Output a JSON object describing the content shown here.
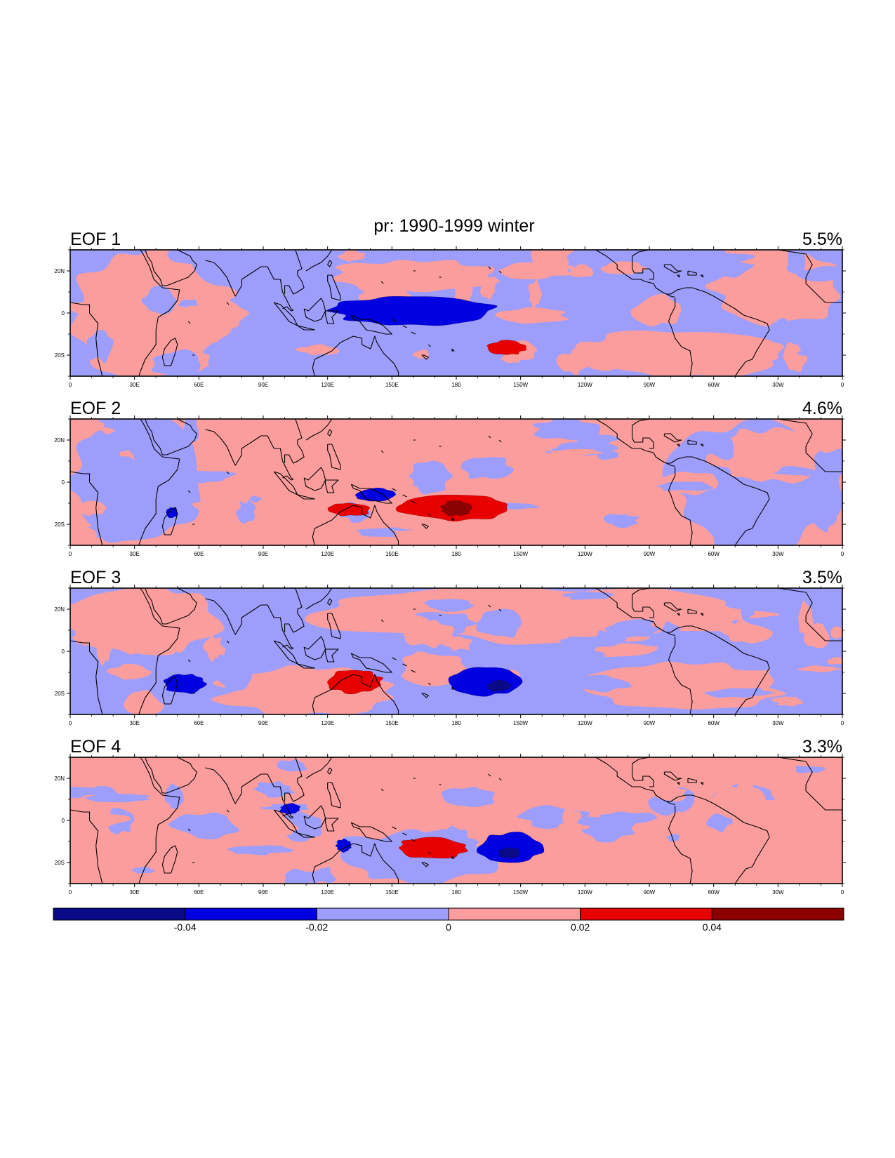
{
  "chart_data": {
    "type": "heatmap",
    "title": "pr: 1990-1999 winter",
    "variable": "pr",
    "colorbar": {
      "levels": [
        -0.04,
        -0.02,
        0,
        0.02,
        0.04
      ],
      "tick_labels": [
        "-0.04",
        "-0.02",
        "0",
        "0.02",
        "0.04"
      ],
      "colors": [
        "#0a0a88",
        "#0000e0",
        "#9d9dfc",
        "#fc9d9d",
        "#e80000",
        "#8b0000"
      ]
    },
    "x_tick_labels": [
      "0",
      "30E",
      "60E",
      "90E",
      "120E",
      "150E",
      "180",
      "150W",
      "120W",
      "90W",
      "60W",
      "30W",
      "0"
    ],
    "y_tick_labels": [
      "20N",
      "0",
      "20S"
    ],
    "lon_range": [
      0,
      360
    ],
    "lat_range": [
      -30,
      30
    ],
    "panels": [
      {
        "label": "EOF 1",
        "variance": "5.5%",
        "features": [
          {
            "sign": "negative",
            "lon": [
              122,
              197
            ],
            "lat": [
              -6,
              8
            ],
            "level": 1
          },
          {
            "sign": "positive",
            "lon": [
              195,
              212
            ],
            "lat": [
              -20,
              -13
            ],
            "level": 1
          }
        ]
      },
      {
        "label": "EOF 2",
        "variance": "4.6%",
        "features": [
          {
            "sign": "positive",
            "lon": [
              153,
              205
            ],
            "lat": [
              -18,
              -6
            ],
            "level": 1
          },
          {
            "sign": "positive",
            "lon": [
              173,
              187
            ],
            "lat": [
              -16,
              -9
            ],
            "level": 2
          },
          {
            "sign": "positive",
            "lon": [
              120,
              140
            ],
            "lat": [
              -16,
              -10
            ],
            "level": 1
          },
          {
            "sign": "negative",
            "lon": [
              133,
              152
            ],
            "lat": [
              -9,
              -3
            ],
            "level": 1
          },
          {
            "sign": "negative",
            "lon": [
              45,
              50
            ],
            "lat": [
              -17,
              -12
            ],
            "level": 1
          }
        ]
      },
      {
        "label": "EOF 3",
        "variance": "3.5%",
        "features": [
          {
            "sign": "positive",
            "lon": [
              120,
              145
            ],
            "lat": [
              -20,
              -9
            ],
            "level": 1
          },
          {
            "sign": "negative",
            "lon": [
              178,
              210
            ],
            "lat": [
              -21,
              -8
            ],
            "level": 1
          },
          {
            "sign": "negative",
            "lon": [
              195,
              205
            ],
            "lat": [
              -19,
              -14
            ],
            "level": 2
          },
          {
            "sign": "negative",
            "lon": [
              44,
              63
            ],
            "lat": [
              -20,
              -11
            ],
            "level": 1
          }
        ]
      },
      {
        "label": "EOF 4",
        "variance": "3.3%",
        "features": [
          {
            "sign": "positive",
            "lon": [
              153,
              185
            ],
            "lat": [
              -18,
              -8
            ],
            "level": 1
          },
          {
            "sign": "negative",
            "lon": [
              190,
              220
            ],
            "lat": [
              -20,
              -6
            ],
            "level": 1
          },
          {
            "sign": "negative",
            "lon": [
              200,
              210
            ],
            "lat": [
              -18,
              -13
            ],
            "level": 2
          },
          {
            "sign": "negative",
            "lon": [
              98,
              107
            ],
            "lat": [
              3,
              8
            ],
            "level": 1
          },
          {
            "sign": "negative",
            "lon": [
              124,
              131
            ],
            "lat": [
              -15,
              -9
            ],
            "level": 1
          }
        ]
      }
    ]
  }
}
